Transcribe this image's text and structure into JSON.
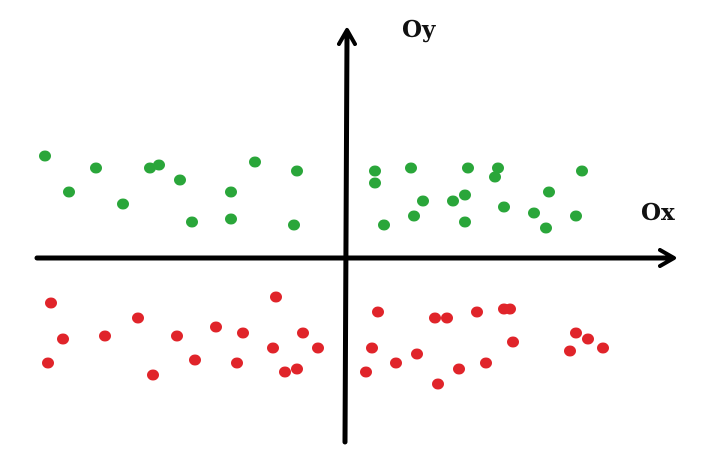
{
  "axes": {
    "x_label": "Ox",
    "y_label": "Oy",
    "color": "#000000"
  },
  "colors": {
    "green": "#2aa63a",
    "red": "#e0242a"
  },
  "points": {
    "green": [
      [
        -10.0,
        3.4
      ],
      [
        -9.2,
        2.2
      ],
      [
        -8.3,
        3.0
      ],
      [
        -7.4,
        1.8
      ],
      [
        -6.5,
        3.0
      ],
      [
        -6.2,
        3.1
      ],
      [
        -5.5,
        2.6
      ],
      [
        -5.1,
        1.2
      ],
      [
        -3.8,
        2.2
      ],
      [
        -3.8,
        1.3
      ],
      [
        -3.0,
        3.2
      ],
      [
        -1.6,
        2.9
      ],
      [
        -1.7,
        1.1
      ],
      [
        1.0,
        2.9
      ],
      [
        1.0,
        2.5
      ],
      [
        1.3,
        1.1
      ],
      [
        2.2,
        3.0
      ],
      [
        2.3,
        1.4
      ],
      [
        2.6,
        1.9
      ],
      [
        3.6,
        1.9
      ],
      [
        4.1,
        3.0
      ],
      [
        4.0,
        2.1
      ],
      [
        4.0,
        1.2
      ],
      [
        5.1,
        3.0
      ],
      [
        5.0,
        2.7
      ],
      [
        5.3,
        1.7
      ],
      [
        6.3,
        1.5
      ],
      [
        6.8,
        2.2
      ],
      [
        6.7,
        1.0
      ],
      [
        7.9,
        2.9
      ],
      [
        7.7,
        1.4
      ]
    ],
    "red": [
      [
        -9.8,
        -1.5
      ],
      [
        -9.4,
        -2.7
      ],
      [
        -9.9,
        -3.5
      ],
      [
        -8.0,
        -2.6
      ],
      [
        -6.9,
        -2.0
      ],
      [
        -6.4,
        -3.9
      ],
      [
        -5.6,
        -2.6
      ],
      [
        -5.0,
        -3.4
      ],
      [
        -4.3,
        -2.3
      ],
      [
        -3.6,
        -3.5
      ],
      [
        -3.4,
        -2.5
      ],
      [
        -2.3,
        -1.3
      ],
      [
        -2.4,
        -3.0
      ],
      [
        -1.4,
        -2.5
      ],
      [
        -2.0,
        -3.8
      ],
      [
        -1.6,
        -3.7
      ],
      [
        -0.9,
        -3.0
      ],
      [
        1.1,
        -1.8
      ],
      [
        0.9,
        -3.0
      ],
      [
        1.7,
        -3.5
      ],
      [
        0.7,
        -3.8
      ],
      [
        2.4,
        -3.2
      ],
      [
        3.0,
        -2.0
      ],
      [
        3.4,
        -2.0
      ],
      [
        3.1,
        -4.2
      ],
      [
        3.8,
        -3.7
      ],
      [
        4.4,
        -1.8
      ],
      [
        4.7,
        -3.5
      ],
      [
        5.3,
        -1.7
      ],
      [
        5.5,
        -1.7
      ],
      [
        5.6,
        -2.8
      ],
      [
        7.5,
        -3.1
      ],
      [
        7.7,
        -2.5
      ],
      [
        8.1,
        -2.7
      ],
      [
        8.6,
        -3.0
      ]
    ]
  }
}
